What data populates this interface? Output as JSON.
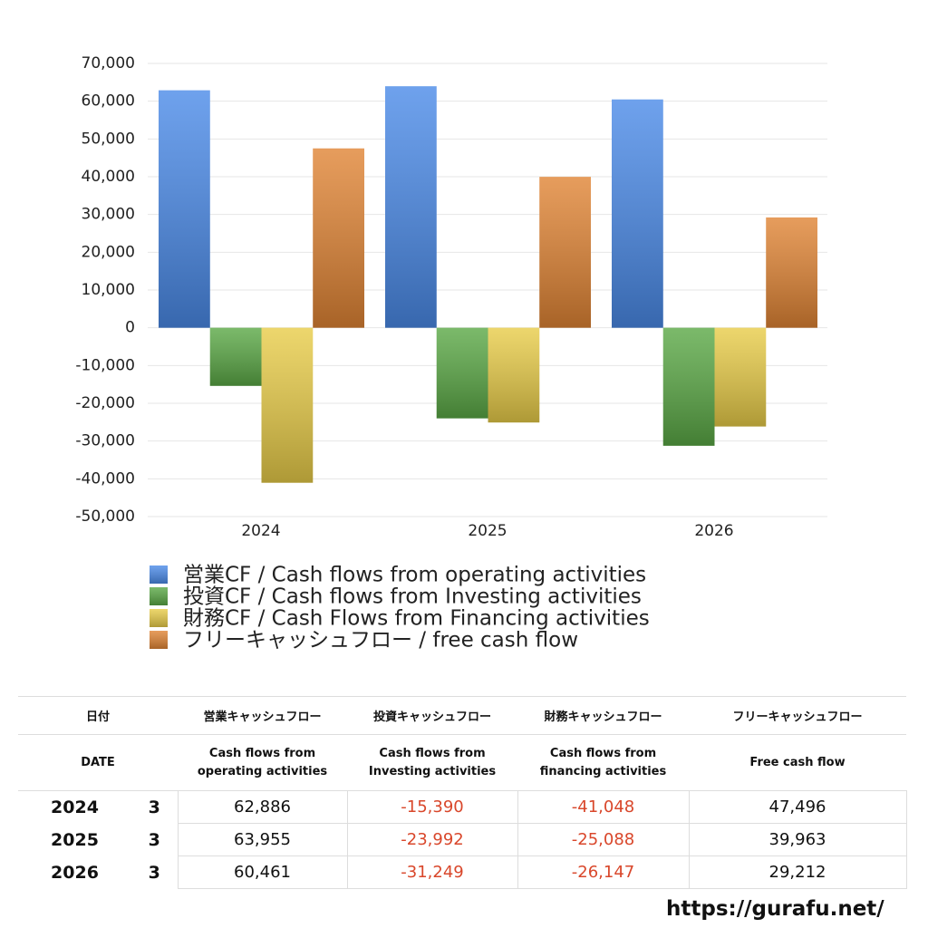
{
  "chart_data": {
    "type": "bar",
    "categories": [
      "2024",
      "2025",
      "2026"
    ],
    "series": [
      {
        "name": "営業CF / Cash flows from operating activities",
        "color": "#4a8ae8",
        "values": [
          62886,
          63955,
          60461
        ]
      },
      {
        "name": "投資CF / Cash flows from Investing activities",
        "color": "#5aa845",
        "values": [
          -15390,
          -23992,
          -31249
        ]
      },
      {
        "name": "財務CF / Cash Flows from Financing activities",
        "color": "#e8cc48",
        "values": [
          -41048,
          -25088,
          -26147
        ]
      },
      {
        "name": "フリーキャッシュフロー / free cash flow",
        "color": "#e08434",
        "values": [
          47496,
          39963,
          29212
        ]
      }
    ],
    "ylim": [
      -50000,
      70000
    ],
    "yticks": [
      {
        "value": -50000,
        "label": "-50,000"
      },
      {
        "value": -40000,
        "label": "-40,000"
      },
      {
        "value": -30000,
        "label": "-30,000"
      },
      {
        "value": -20000,
        "label": "-20,000"
      },
      {
        "value": -10000,
        "label": "-10,000"
      },
      0,
      {
        "value": 10000,
        "label": "10,000"
      },
      {
        "value": 20000,
        "label": "20,000"
      },
      {
        "value": 30000,
        "label": "30,000"
      },
      {
        "value": 40000,
        "label": "40,000"
      },
      {
        "value": 50000,
        "label": "50,000"
      },
      {
        "value": 60000,
        "label": "60,000"
      },
      {
        "value": 70000,
        "label": "70,000"
      }
    ],
    "grid": true,
    "legend": "bottom"
  },
  "table": {
    "header": [
      "日付",
      "営業キャッシュフロー",
      "投資キャッシュフロー",
      "財務キャッシュフロー",
      "フリーキャッシュフロー"
    ],
    "subheader": [
      "DATE",
      "Cash flows from operating activities",
      "Cash flows from Investing activities",
      "Cash flows from financing activities",
      "Free cash flow"
    ],
    "rows": [
      [
        "2024",
        "3",
        "62,886",
        "-15,390",
        "-41,048",
        "47,496"
      ],
      [
        "2025",
        "3",
        "63,955",
        "-23,992",
        "-25,088",
        "39,963"
      ],
      [
        "2026",
        "3",
        "60,461",
        "-31,249",
        "-26,147",
        "29,212"
      ]
    ]
  },
  "footer": "https://gurafu.net/"
}
